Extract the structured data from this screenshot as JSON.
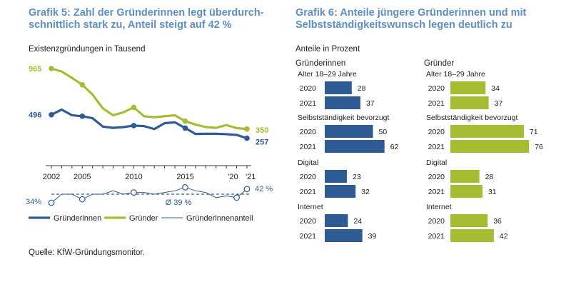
{
  "left": {
    "title_line1": "Grafik 5: Zahl der Gründerinnen legt überdurch-",
    "title_line2": "schnittlich stark zu, Anteil steigt auf 42 %",
    "subtitle": "Existenzgründungen in Tausend"
  },
  "right": {
    "title_line1": "Grafik 6: Anteile jüngere Gründerinnen und mit",
    "title_line2": "Selbstständigkeitswunsch legen deutlich zu",
    "subtitle": "Anteile in Prozent"
  },
  "source": "Quelle: KfW-Gründungsmonitor.",
  "colors": {
    "female": "#2e5b93",
    "male": "#a7bb33",
    "title": "#5b8fc6"
  },
  "chart_data": [
    {
      "type": "line",
      "x": [
        2002,
        2003,
        2004,
        2005,
        2006,
        2007,
        2008,
        2009,
        2010,
        2011,
        2012,
        2013,
        2014,
        2015,
        2016,
        2017,
        2018,
        2019,
        2020,
        2021
      ],
      "x_tick_labels": [
        "2002",
        "2005",
        "2010",
        "2015",
        "'20",
        "'21"
      ],
      "series": [
        {
          "name": "Gründerinnen",
          "values": [
            496,
            548,
            490,
            480,
            460,
            375,
            362,
            370,
            385,
            380,
            350,
            410,
            418,
            360,
            300,
            302,
            302,
            298,
            290,
            257
          ],
          "labels": {
            "2002": "496",
            "2021": "257"
          }
        },
        {
          "name": "Gründer",
          "values": [
            965,
            935,
            870,
            800,
            700,
            560,
            490,
            520,
            570,
            480,
            470,
            480,
            490,
            430,
            395,
            370,
            362,
            390,
            360,
            350
          ],
          "labels": {
            "2002": "965",
            "2021": "350"
          }
        }
      ],
      "share_series": {
        "name": "Gründerinnenanteil",
        "values": [
          34,
          39,
          39,
          36,
          39,
          39,
          41,
          39,
          40,
          40,
          39,
          40,
          41,
          43,
          41,
          40,
          37,
          38,
          37,
          42
        ],
        "average": 39,
        "average_label": "Ø 39 %",
        "start_label": "34%",
        "end_label": "42 %"
      }
    },
    {
      "type": "bar",
      "unit": "Anteile in Prozent",
      "panels": [
        {
          "name": "Gründerinnen",
          "groups": [
            {
              "label": "Alter 18–29 Jahre",
              "items": [
                {
                  "year": "2020",
                  "value": 28
                },
                {
                  "year": "2021",
                  "value": 37
                }
              ]
            },
            {
              "label": "Selbstständigkeit bevorzugt",
              "items": [
                {
                  "year": "2020",
                  "value": 50
                },
                {
                  "year": "2021",
                  "value": 62
                }
              ]
            },
            {
              "label": "Digital",
              "items": [
                {
                  "year": "2020",
                  "value": 23
                },
                {
                  "year": "2021",
                  "value": 32
                }
              ]
            },
            {
              "label": "Internet",
              "items": [
                {
                  "year": "2020",
                  "value": 24
                },
                {
                  "year": "2021",
                  "value": 39
                }
              ]
            }
          ]
        },
        {
          "name": "Gründer",
          "groups": [
            {
              "label": "Alter 18–29 Jahre",
              "items": [
                {
                  "year": "2020",
                  "value": 34
                },
                {
                  "year": "2021",
                  "value": 37
                }
              ]
            },
            {
              "label": "Selbstständigkeit bevorzugt",
              "items": [
                {
                  "year": "2020",
                  "value": 71
                },
                {
                  "year": "2021",
                  "value": 76
                }
              ]
            },
            {
              "label": "Digital",
              "items": [
                {
                  "year": "2020",
                  "value": 28
                },
                {
                  "year": "2021",
                  "value": 31
                }
              ]
            },
            {
              "label": "Internet",
              "items": [
                {
                  "year": "2020",
                  "value": 36
                },
                {
                  "year": "2021",
                  "value": 42
                }
              ]
            }
          ]
        }
      ]
    }
  ]
}
